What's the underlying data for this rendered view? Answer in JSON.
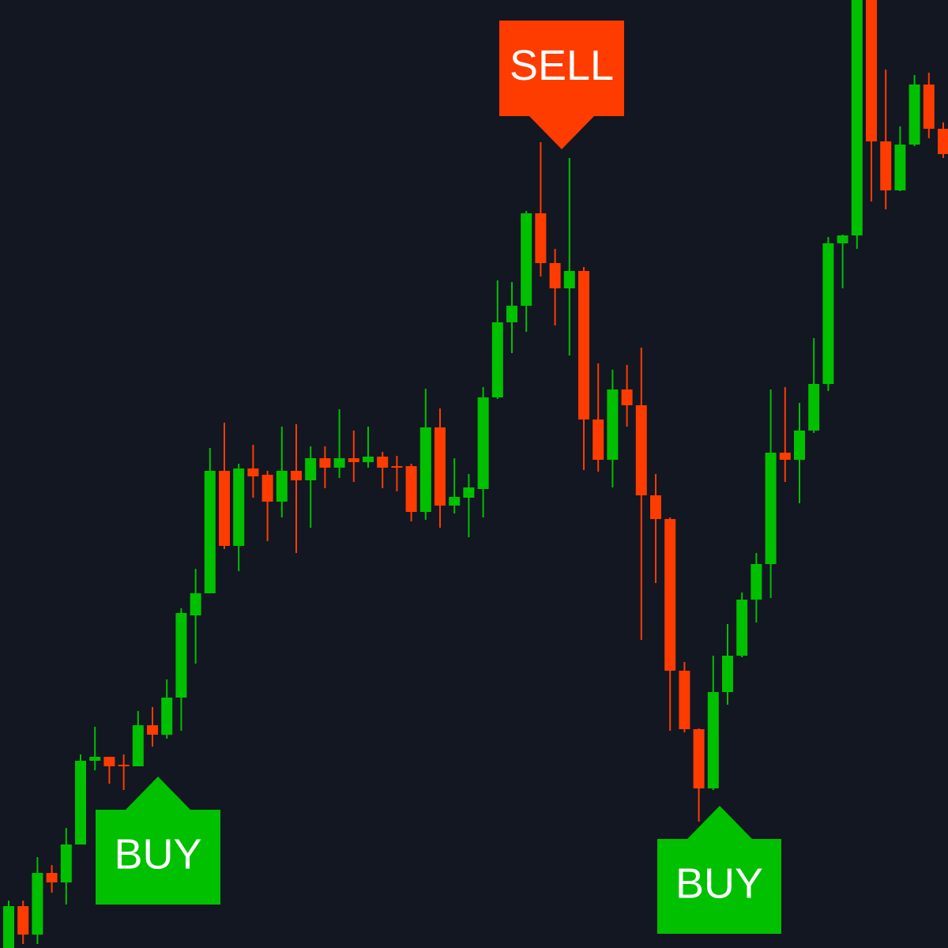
{
  "chart_data": {
    "type": "candlestick",
    "up_color": "#00c000",
    "down_color": "#ff3c00",
    "background": "#131722",
    "ylim": [
      0,
      1200
    ],
    "open": [
      0,
      53,
      17,
      95,
      83,
      131,
      237,
      242,
      232,
      230,
      282,
      270,
      317,
      421,
      449,
      604,
      509,
      607,
      599,
      565,
      604,
      592,
      620,
      608,
      620,
      615,
      622,
      610,
      610,
      552,
      659,
      560,
      570,
      581,
      697,
      792,
      813,
      930,
      867,
      835,
      857,
      669,
      618,
      707,
      687,
      573,
      543,
      351,
      277,
      202,
      324,
      370,
      441,
      486,
      627,
      618,
      655,
      714,
      892,
      902,
      1205,
      1021,
      959,
      1017,
      1093,
      1037
    ],
    "high": [
      60,
      60,
      115,
      105,
      152,
      245,
      280,
      242,
      245,
      300,
      305,
      340,
      430,
      480,
      633,
      665,
      613,
      637,
      604,
      660,
      663,
      635,
      635,
      682,
      655,
      660,
      628,
      623,
      613,
      708,
      683,
      620,
      600,
      710,
      845,
      843,
      933,
      1020,
      885,
      1000,
      862,
      740,
      732,
      738,
      760,
      600,
      545,
      362,
      278,
      370,
      410,
      450,
      500,
      707,
      710,
      690,
      772,
      900,
      903,
      1215,
      1215,
      1112,
      1040,
      1105,
      1108,
      1045
    ],
    "low": [
      0,
      5,
      5,
      70,
      55,
      131,
      225,
      208,
      200,
      230,
      255,
      265,
      275,
      360,
      449,
      505,
      477,
      570,
      515,
      545,
      500,
      532,
      582,
      595,
      590,
      608,
      582,
      578,
      540,
      542,
      532,
      550,
      520,
      545,
      695,
      753,
      780,
      850,
      788,
      750,
      605,
      603,
      583,
      660,
      390,
      462,
      275,
      273,
      160,
      200,
      308,
      368,
      412,
      443,
      590,
      563,
      652,
      705,
      835,
      885,
      945,
      935,
      958,
      1015,
      1025,
      1000
    ],
    "close": [
      53,
      17,
      95,
      83,
      131,
      237,
      242,
      230,
      230,
      282,
      270,
      317,
      424,
      449,
      604,
      509,
      607,
      597,
      565,
      604,
      592,
      620,
      608,
      620,
      615,
      622,
      608,
      608,
      552,
      659,
      560,
      571,
      583,
      697,
      792,
      813,
      930,
      867,
      835,
      857,
      669,
      618,
      707,
      687,
      573,
      543,
      351,
      277,
      202,
      324,
      370,
      441,
      486,
      627,
      618,
      655,
      714,
      892,
      902,
      1205,
      1021,
      959,
      1017,
      1093,
      1037,
      1005
    ],
    "annotations": [
      {
        "text": "BUY",
        "color": "#00c000"
      },
      {
        "text": "SELL",
        "color": "#ff3c00"
      },
      {
        "text": "BUY",
        "color": "#00c000"
      }
    ]
  }
}
